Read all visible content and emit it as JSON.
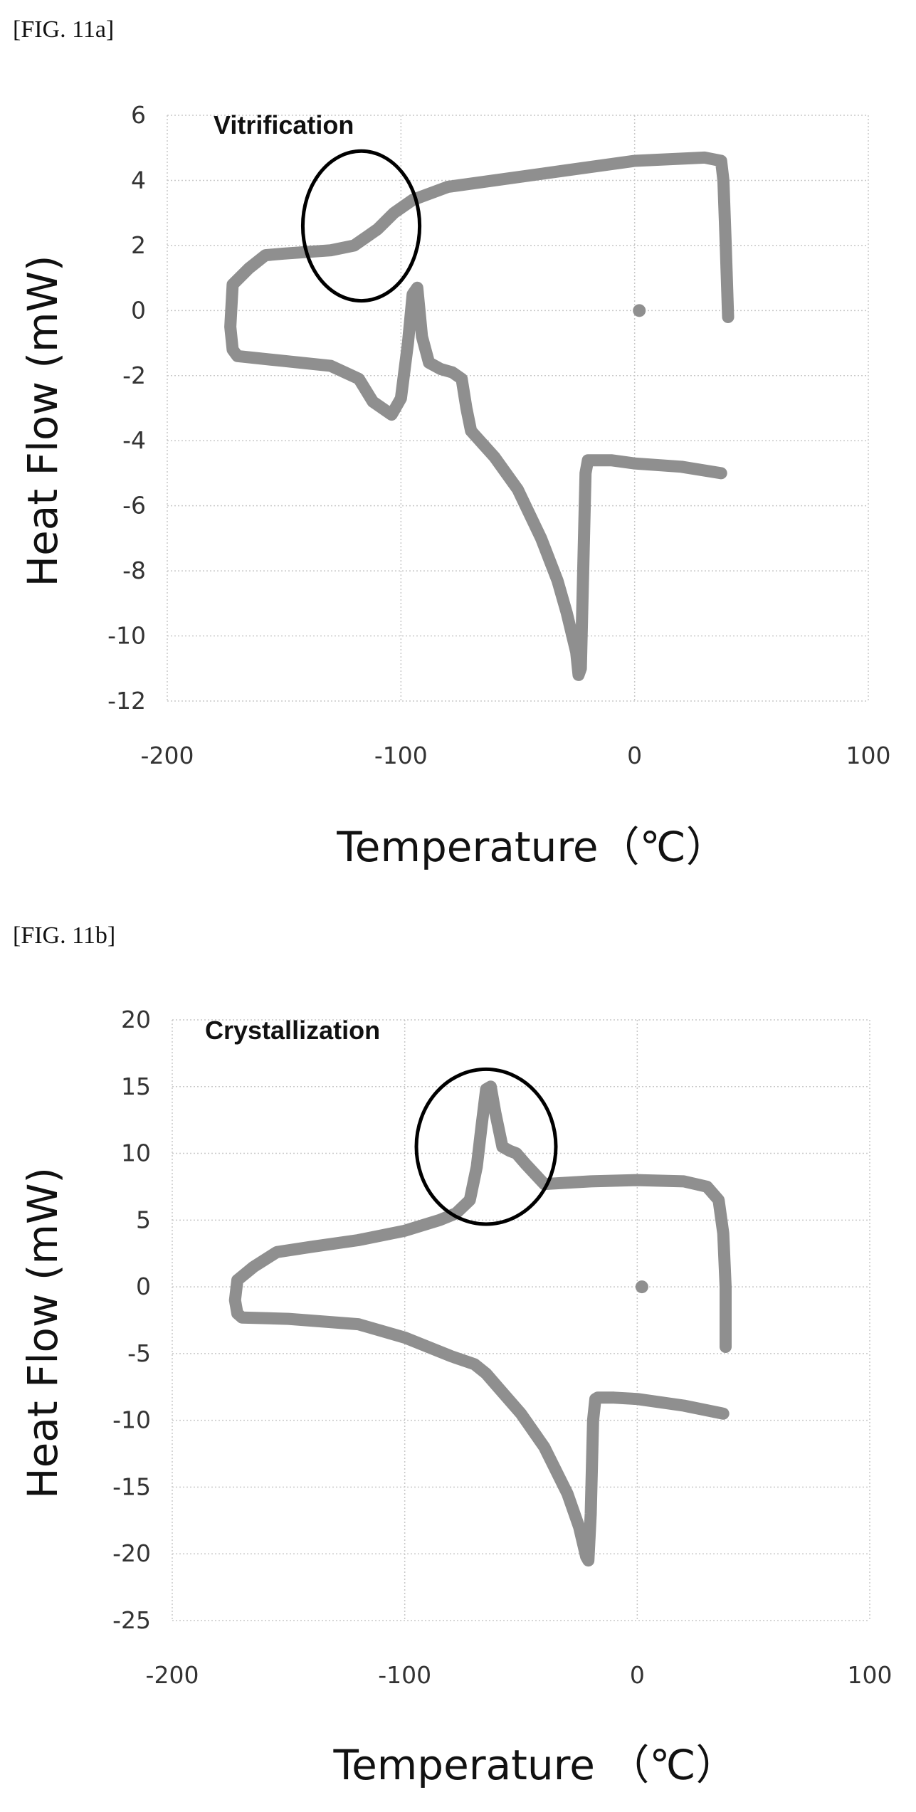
{
  "colors": {
    "curve": "#8f8f8f",
    "grid": "#c8c8c8",
    "text": "#111111"
  },
  "chart_data": [
    {
      "figure_label": "[FIG. 11a]",
      "type": "line",
      "xlabel": "Temperature（℃）",
      "ylabel": "Heat Flow (mW)",
      "xlim": [
        -200,
        100
      ],
      "ylim": [
        -12,
        6
      ],
      "xticks": [
        "-200",
        "-100",
        "0",
        "100"
      ],
      "yticks": [
        "6",
        "4",
        "2",
        "0",
        "-2",
        "-4",
        "-6",
        "-8",
        "-10",
        "-12"
      ],
      "grid": true,
      "annotation": {
        "text": "Vitrification",
        "center": [
          -117,
          2.6
        ],
        "radius": [
          25,
          2.3
        ]
      },
      "series": [
        {
          "x": [
            40,
            39,
            38,
            37,
            30,
            0,
            -30,
            -60,
            -80,
            -95,
            -103,
            -110,
            -120,
            -130,
            -150,
            -158,
            -165,
            -172,
            -173,
            -172,
            -170,
            -150,
            -130,
            -118,
            -112,
            -104,
            -100,
            -97,
            -95,
            -93,
            -91,
            -88,
            -83,
            -78,
            -74,
            -72,
            -70,
            -60,
            -50,
            -40,
            -33,
            -29,
            -25,
            -24,
            -23,
            -22,
            -21,
            -20,
            -10,
            0,
            20,
            37
          ],
          "y": [
            -0.2,
            2,
            4,
            4.6,
            4.7,
            4.6,
            4.3,
            4.0,
            3.8,
            3.4,
            3.0,
            2.5,
            2.0,
            1.85,
            1.75,
            1.7,
            1.3,
            0.8,
            -0.5,
            -1.2,
            -1.4,
            -1.55,
            -1.7,
            -2.1,
            -2.8,
            -3.2,
            -2.7,
            -1,
            0.5,
            0.7,
            -0.8,
            -1.6,
            -1.8,
            -1.9,
            -2.1,
            -3.0,
            -3.7,
            -4.5,
            -5.5,
            -7.0,
            -8.3,
            -9.3,
            -10.5,
            -11.2,
            -11.0,
            -8,
            -5,
            -4.6,
            -4.6,
            -4.7,
            -4.8,
            -5.0
          ]
        }
      ],
      "points": [
        {
          "x": 2,
          "y": 0
        }
      ]
    },
    {
      "figure_label": "[FIG. 11b]",
      "type": "line",
      "xlabel": "Temperature （℃）",
      "ylabel": "Heat Flow (mW)",
      "xlim": [
        -200,
        100
      ],
      "ylim": [
        -25,
        20
      ],
      "xticks": [
        "-200",
        "-100",
        "0",
        "100"
      ],
      "yticks": [
        "20",
        "15",
        "10",
        "5",
        "0",
        "-5",
        "-10",
        "-15",
        "-20",
        "-25"
      ],
      "grid": true,
      "annotation": {
        "text": "Crystallization",
        "center": [
          -65,
          10.5
        ],
        "radius": [
          30,
          5.8
        ]
      },
      "series": [
        {
          "x": [
            38,
            38,
            37,
            35,
            30,
            20,
            0,
            -20,
            -40,
            -48,
            -52,
            -55,
            -58,
            -61,
            -63,
            -65,
            -67,
            -69,
            -72,
            -78,
            -85,
            -100,
            -120,
            -140,
            -155,
            -165,
            -172,
            -173,
            -172,
            -170,
            -150,
            -120,
            -100,
            -80,
            -70,
            -65,
            -60,
            -50,
            -40,
            -30,
            -25,
            -22,
            -21,
            -20,
            -19,
            -18,
            -17,
            -10,
            0,
            20,
            37
          ],
          "y": [
            -4.5,
            0,
            4,
            6.5,
            7.5,
            7.9,
            8.0,
            7.9,
            7.7,
            9.2,
            10.0,
            10.2,
            10.5,
            13,
            15.0,
            14.8,
            12,
            9,
            6.5,
            5.5,
            5.0,
            4.2,
            3.5,
            3.0,
            2.6,
            1.5,
            0.5,
            -1,
            -2,
            -2.3,
            -2.4,
            -2.8,
            -3.8,
            -5.2,
            -5.8,
            -6.5,
            -7.5,
            -9.5,
            -12,
            -15.5,
            -18,
            -20.2,
            -20.5,
            -17,
            -10,
            -8.4,
            -8.3,
            -8.3,
            -8.4,
            -8.9,
            -9.5
          ]
        }
      ],
      "points": [
        {
          "x": 2,
          "y": 0
        }
      ]
    }
  ]
}
